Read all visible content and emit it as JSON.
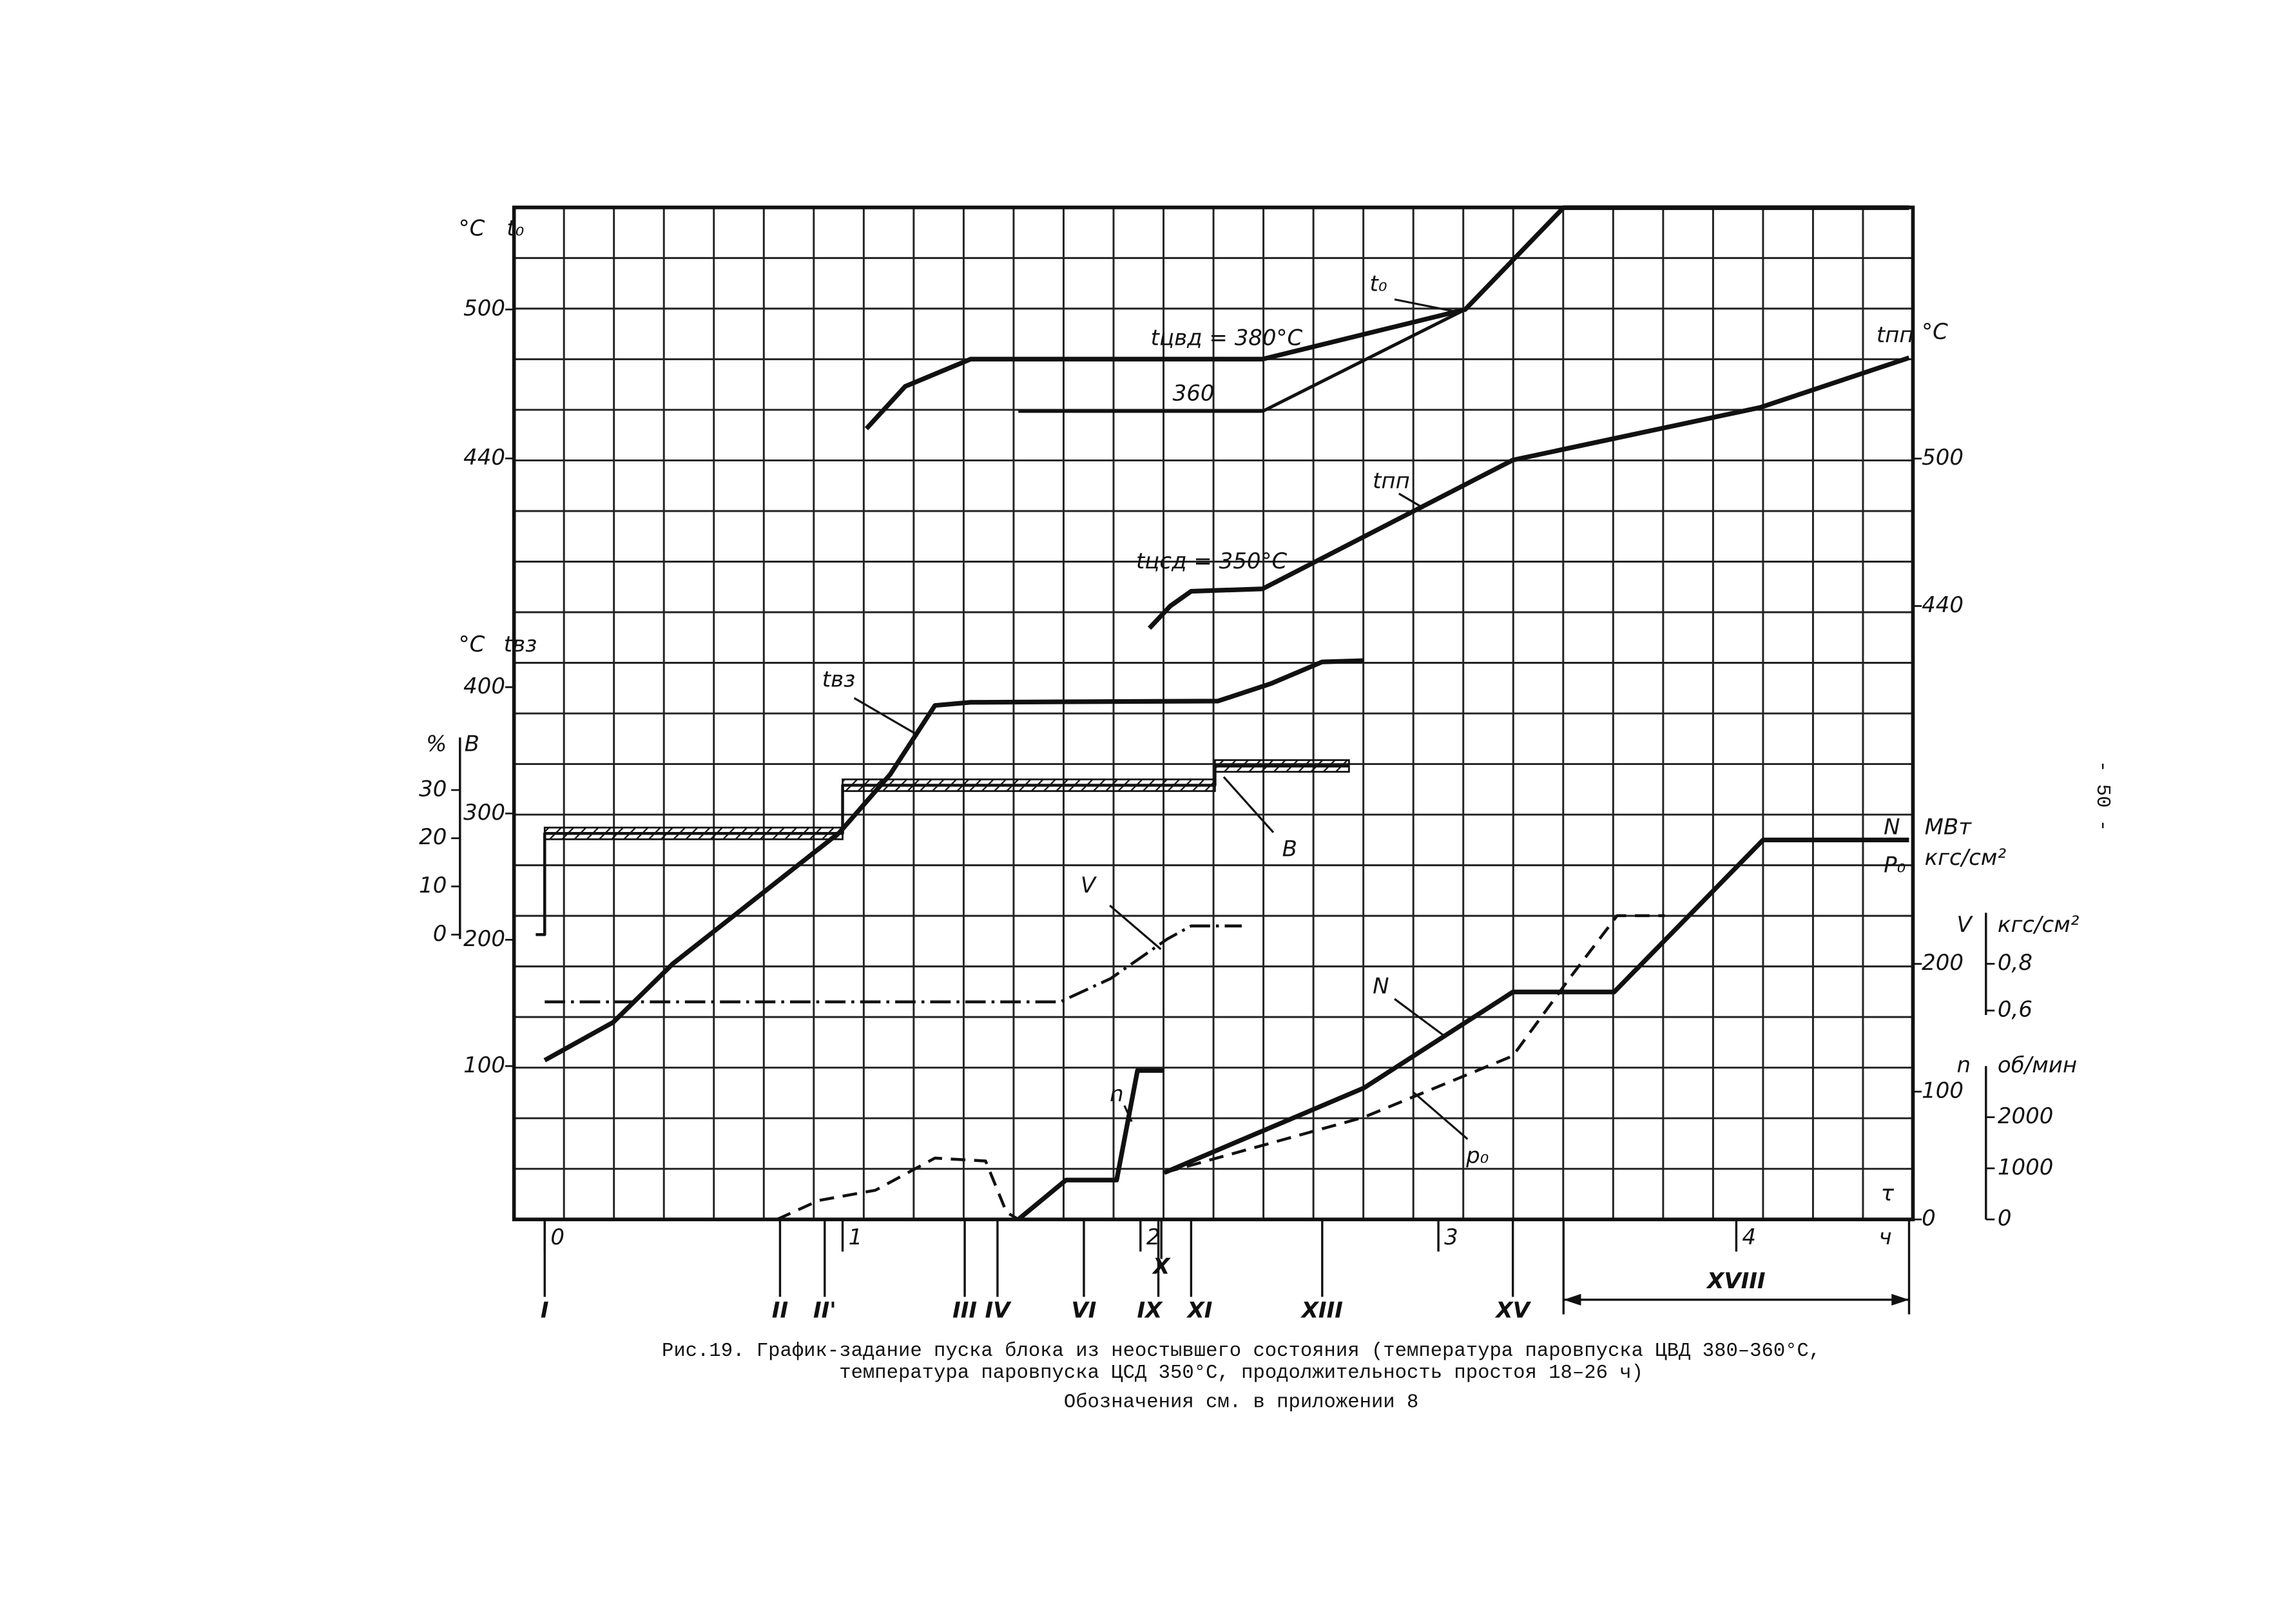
{
  "page_number": "- 50 -",
  "caption": [
    "Рис.19. График-задание пуска блока из неостывшего состояния (температура паровпуска ЦВД 380–360°С,",
    "температура паровпуска ЦСД 350°С, продолжительность простоя 18–26 ч)",
    "Обозначения см. в приложении 8"
  ],
  "chart_data": {
    "type": "line",
    "xlim": [
      -0.103,
      4.593
    ],
    "xticks": [
      0,
      1,
      2,
      3,
      4
    ],
    "x_unit": "ч",
    "x_symbol": "τ",
    "axes": [
      {
        "name": "t₀",
        "unit": "°C",
        "lim": [
          133.5,
          541.1
        ],
        "ticks": [
          440,
          500
        ]
      },
      {
        "name": "tвз",
        "unit": "°C",
        "lim": [
          -21.4,
          779.8
        ],
        "ticks": [
          100,
          200,
          300,
          400
        ]
      },
      {
        "name": "В",
        "unit": "%",
        "lim": [
          -59.1,
          150.9
        ],
        "ticks": [
          0,
          10,
          20,
          30
        ]
      },
      {
        "name": "tпп",
        "unit": "°C",
        "lim": [
          190.4,
          602.2
        ],
        "ticks": [
          440,
          500
        ]
      },
      {
        "name": "N",
        "unit": "МВт",
        "name2": "P₀",
        "unit2": "кгс/см²",
        "lim": [
          0,
          792
        ],
        "ticks": [
          0,
          100,
          200
        ]
      },
      {
        "name": "V",
        "unit": "кгс/см²",
        "lim": [
          -0.294,
          4.037
        ],
        "ticks": [
          {
            "value": 0.6,
            "label": "0,6"
          },
          {
            "value": 0.8,
            "label": "0,8"
          }
        ]
      },
      {
        "name": "n",
        "unit": "об/мин",
        "lim": [
          0,
          19800
        ],
        "ticks": [
          0,
          1000,
          2000
        ]
      }
    ],
    "series": [
      {
        "axis": 0,
        "style": "solid",
        "x": [
          1.08,
          1.21,
          1.43,
          2.41,
          3.09,
          3.42,
          4.58
        ],
        "values": [
          452,
          469,
          480,
          480,
          500,
          541,
          541
        ]
      },
      {
        "axis": 0,
        "style": "thin",
        "x": [
          1.59,
          2.41,
          3.09
        ],
        "values": [
          459,
          459,
          500
        ]
      },
      {
        "axis": 3,
        "style": "solid",
        "x": [
          2.03,
          2.1,
          2.17,
          2.41,
          3.25,
          4.08,
          4.58
        ],
        "values": [
          431,
          440,
          446,
          447,
          499.4,
          520.8,
          541
        ]
      },
      {
        "axis": 1,
        "style": "solid",
        "x": [
          0,
          0.23,
          0.43,
          0.99,
          1.16,
          1.31,
          1.43,
          2.26,
          2.44,
          2.61,
          2.75
        ],
        "values": [
          104.6,
          134.7,
          181,
          285,
          331,
          385.5,
          388,
          389,
          403,
          420,
          421
        ]
      },
      {
        "axis": 2,
        "style": "step",
        "x": [
          -0.03,
          0,
          0,
          1.0,
          1.0,
          2.25,
          2.25,
          2.7
        ],
        "values": [
          0,
          0,
          21,
          21,
          31,
          31,
          35,
          35
        ]
      },
      {
        "axis": 5,
        "style": "dashdot",
        "x": [
          0,
          1.73,
          1.9,
          2.09,
          2.17,
          2.34
        ],
        "values": [
          0.637,
          0.637,
          0.737,
          0.906,
          0.962,
          0.962
        ]
      },
      {
        "axis": 6,
        "style": "solid",
        "x": [
          1.59,
          1.75,
          1.92,
          1.99,
          2.08
        ],
        "values": [
          0,
          771,
          771,
          2914,
          2914
        ]
      },
      {
        "axis": 6,
        "style": "dashed",
        "x": [
          0.78,
          0.92,
          1.11,
          1.31,
          1.48,
          1.55,
          1.59
        ],
        "values": [
          0,
          371,
          571,
          1200,
          1143,
          143,
          0
        ]
      },
      {
        "axis": 4,
        "style": "solid",
        "x": [
          2.08,
          2.75,
          3.25,
          3.59,
          4.09,
          4.58
        ],
        "values": [
          36.6,
          102.9,
          178,
          178,
          297,
          297
        ]
      },
      {
        "axis": 4,
        "style": "dashed",
        "x": [
          2.08,
          2.75,
          3.25,
          3.44,
          3.6,
          3.76
        ],
        "values": [
          36.6,
          80,
          128,
          188.6,
          237.7,
          237.7
        ]
      }
    ],
    "annotations": [
      "t₀",
      "tцвд = 380°C",
      "360",
      "tпп",
      "tцсд = 350°C",
      "tвз",
      "В",
      "V",
      "N",
      "p₀",
      "n",
      "τ"
    ],
    "events": [
      {
        "label": "I",
        "x": 0
      },
      {
        "label": "II",
        "x": 0.79
      },
      {
        "label": "II'",
        "x": 0.94
      },
      {
        "label": "III",
        "x": 1.41
      },
      {
        "label": "IV",
        "x": 1.52
      },
      {
        "label": "VI",
        "x": 1.81
      },
      {
        "label": "X",
        "x": 2.07
      },
      {
        "label": "IX",
        "x": 2.06
      },
      {
        "label": "XI",
        "x": 2.17
      },
      {
        "label": "XIII",
        "x": 2.61
      },
      {
        "label": "XV",
        "x": 3.25
      }
    ],
    "span_event": {
      "label": "XVIII",
      "x": [
        3.42,
        4.58
      ]
    }
  }
}
